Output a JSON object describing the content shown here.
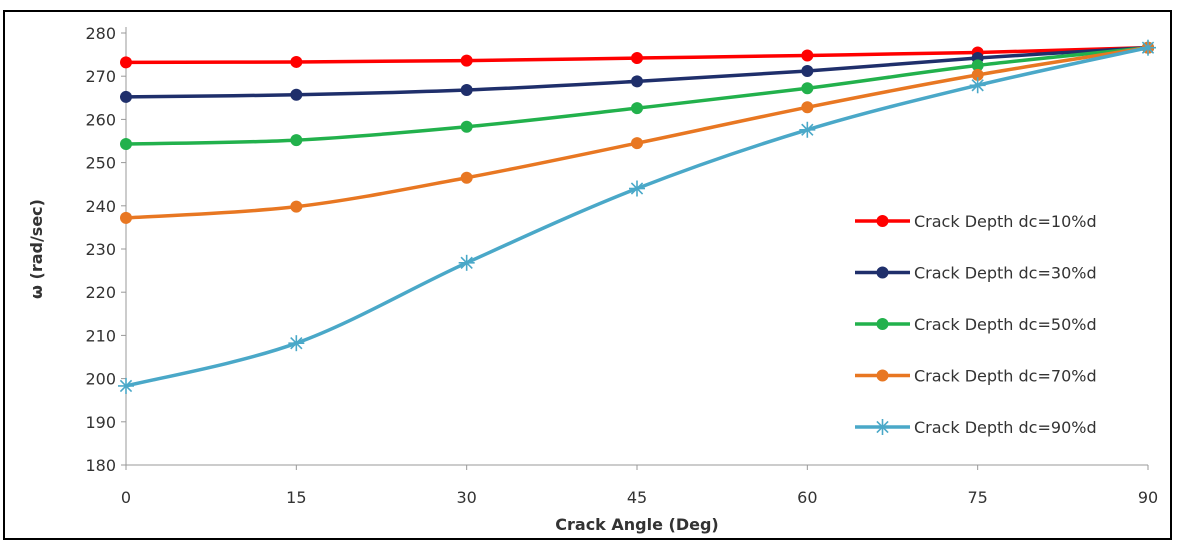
{
  "chart_data": {
    "type": "line",
    "xlabel": "Crack Angle (Deg)",
    "ylabel": "ω (rad/sec)",
    "x": [
      0,
      15,
      30,
      45,
      60,
      75,
      90
    ],
    "xlim": [
      0,
      90
    ],
    "ylim": [
      180,
      280
    ],
    "ytick_step": 10,
    "grid": false,
    "legend_position": "right",
    "series": [
      {
        "name": "Crack Depth dc=10%d",
        "color": "#ff0000",
        "marker": "circle",
        "values": [
          273.2,
          273.3,
          273.6,
          274.2,
          274.8,
          275.5,
          276.6
        ]
      },
      {
        "name": "Crack Depth dc=30%d",
        "color": "#1f2f6b",
        "marker": "circle",
        "values": [
          265.2,
          265.7,
          266.8,
          268.8,
          271.2,
          274.2,
          276.6
        ]
      },
      {
        "name": "Crack Depth dc=50%d",
        "color": "#22b14c",
        "marker": "circle",
        "values": [
          254.3,
          255.2,
          258.3,
          262.6,
          267.2,
          272.5,
          276.6
        ]
      },
      {
        "name": "Crack Depth dc=70%d",
        "color": "#e87722",
        "marker": "circle",
        "values": [
          237.2,
          239.8,
          246.5,
          254.5,
          262.8,
          270.3,
          276.6
        ]
      },
      {
        "name": "Crack Depth dc=90%d",
        "color": "#4aa8c8",
        "marker": "star",
        "values": [
          198.3,
          208.2,
          226.8,
          244.0,
          257.6,
          267.9,
          276.6
        ]
      }
    ]
  }
}
